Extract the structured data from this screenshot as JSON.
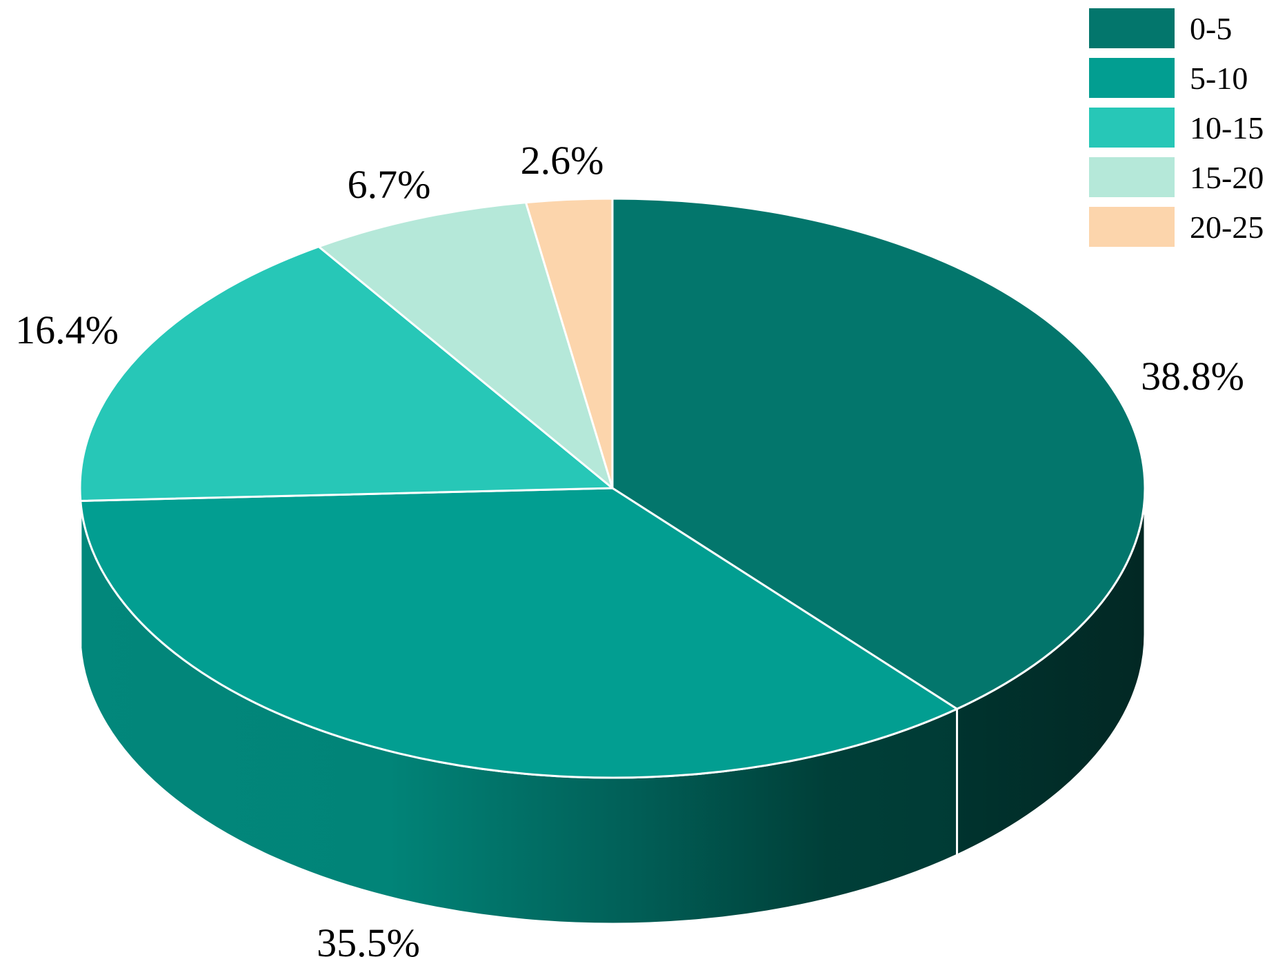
{
  "chart_data": {
    "type": "pie",
    "style": "3d",
    "categories": [
      "0-5",
      "5-10",
      "10-15",
      "15-20",
      "20-25"
    ],
    "values": [
      38.8,
      35.5,
      16.4,
      6.7,
      2.6
    ],
    "labels": [
      "38.8%",
      "35.5%",
      "16.4%",
      "6.7%",
      "2.6%"
    ],
    "colors": [
      "#03766C",
      "#029E91",
      "#27C7B7",
      "#B5E8D9",
      "#FCD5AC"
    ],
    "side_colors": [
      "#02312D",
      "#017F74",
      "#1E9E91",
      "#8FBFB2",
      "#D6B08A"
    ],
    "legend_position": "top-right"
  }
}
